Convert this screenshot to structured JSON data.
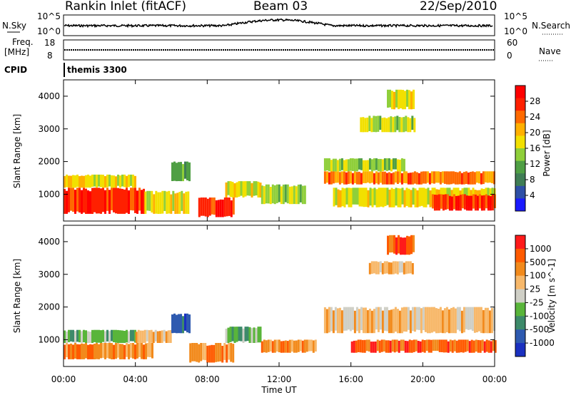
{
  "header": {
    "station": "Rankin Inlet (fitACF)",
    "beam": "Beam 03",
    "date": "22/Sep/2010"
  },
  "top_panels": {
    "nsky_label": "N.Sky",
    "nsearch_label": "N.Search",
    "nsky_ticks": [
      "10^5",
      "10^0"
    ],
    "nsearch_ticks": [
      "10^5",
      "10^0"
    ],
    "freq_label": "Freq.",
    "freq_unit": "[MHz]",
    "freq_ticks": [
      "18",
      "8"
    ],
    "nave_label": "Nave",
    "nave_ticks": [
      "60",
      "0"
    ],
    "cpid_label": "CPID",
    "cpid_value": "themis 3300"
  },
  "colors": {
    "power_scale": [
      "#1a1aff",
      "#2e4fa6",
      "#3f7d55",
      "#4f9f44",
      "#8fcf3a",
      "#f2e000",
      "#ffb000",
      "#ff6a00",
      "#ff2000",
      "#ff0000"
    ],
    "velocity_scale": [
      "#1a30c0",
      "#2e5ab0",
      "#3d8a6a",
      "#59b53a",
      "#cfcfc6",
      "#f7b86a",
      "#f28a1c",
      "#ff5a00",
      "#ff1a1a"
    ]
  },
  "chart_data": [
    {
      "type": "heatmap",
      "name": "power",
      "xlabel": "Time UT",
      "ylabel": "Slant Range [km]",
      "xlim": [
        "00:00",
        "24:00"
      ],
      "ylim": [
        180,
        4500
      ],
      "x_ticks": [
        "00:00",
        "04:00",
        "08:00",
        "12:00",
        "16:00",
        "20:00",
        "00:00"
      ],
      "y_ticks": [
        "1000",
        "2000",
        "3000",
        "4000"
      ],
      "colorbar": {
        "label": "Power [dB]",
        "ticks": [
          "28",
          "24",
          "20",
          "16",
          "12",
          "8",
          "4"
        ],
        "range": [
          0,
          30
        ]
      },
      "regions": [
        {
          "t0": 0.0,
          "t1": 4.5,
          "r0": 400,
          "r1": 1200,
          "level": 27
        },
        {
          "t0": 0.0,
          "t1": 4.0,
          "r0": 1200,
          "r1": 1600,
          "level": 17
        },
        {
          "t0": 4.5,
          "t1": 7.0,
          "r0": 400,
          "r1": 1100,
          "level": 18
        },
        {
          "t0": 6.0,
          "t1": 7.0,
          "r0": 1400,
          "r1": 2000,
          "level": 10
        },
        {
          "t0": 7.5,
          "t1": 9.5,
          "r0": 300,
          "r1": 900,
          "level": 26
        },
        {
          "t0": 9.0,
          "t1": 11.0,
          "r0": 900,
          "r1": 1400,
          "level": 18
        },
        {
          "t0": 11.0,
          "t1": 13.5,
          "r0": 700,
          "r1": 1300,
          "level": 12
        },
        {
          "t0": 14.5,
          "t1": 24.0,
          "r0": 1300,
          "r1": 1700,
          "level": 22
        },
        {
          "t0": 14.5,
          "t1": 19.0,
          "r0": 1700,
          "r1": 2100,
          "level": 12
        },
        {
          "t0": 15.0,
          "t1": 24.0,
          "r0": 600,
          "r1": 1200,
          "level": 18
        },
        {
          "t0": 20.5,
          "t1": 24.0,
          "r0": 500,
          "r1": 1000,
          "level": 26
        },
        {
          "t0": 16.5,
          "t1": 19.5,
          "r0": 2900,
          "r1": 3400,
          "level": 12
        },
        {
          "t0": 18.0,
          "t1": 19.5,
          "r0": 3600,
          "r1": 4200,
          "level": 16
        }
      ]
    },
    {
      "type": "heatmap",
      "name": "velocity",
      "xlabel": "Time UT",
      "ylabel": "Slant Range [km]",
      "xlim": [
        "00:00",
        "24:00"
      ],
      "ylim": [
        180,
        4500
      ],
      "x_ticks": [
        "00:00",
        "04:00",
        "08:00",
        "12:00",
        "16:00",
        "20:00",
        "00:00"
      ],
      "y_ticks": [
        "1000",
        "2000",
        "3000",
        "4000"
      ],
      "colorbar": {
        "label": "Velocity [m s^-1]",
        "ticks": [
          "1000",
          "500",
          "100",
          "25",
          "-25",
          "-100",
          "-500",
          "-1000"
        ]
      },
      "regions": [
        {
          "t0": 0.0,
          "t1": 4.0,
          "r0": 900,
          "r1": 1300,
          "level": 3
        },
        {
          "t0": 0.0,
          "t1": 5.0,
          "r0": 400,
          "r1": 900,
          "level": 6
        },
        {
          "t0": 4.0,
          "t1": 6.0,
          "r0": 900,
          "r1": 1300,
          "level": 5
        },
        {
          "t0": 6.0,
          "t1": 7.0,
          "r0": 1200,
          "r1": 1800,
          "level": 1
        },
        {
          "t0": 7.0,
          "t1": 9.5,
          "r0": 300,
          "r1": 900,
          "level": 6
        },
        {
          "t0": 9.0,
          "t1": 11.0,
          "r0": 900,
          "r1": 1400,
          "level": 3
        },
        {
          "t0": 11.0,
          "t1": 14.0,
          "r0": 600,
          "r1": 1000,
          "level": 6
        },
        {
          "t0": 14.5,
          "t1": 24.0,
          "r0": 1200,
          "r1": 2000,
          "level": 5
        },
        {
          "t0": 16.0,
          "t1": 24.0,
          "r0": 600,
          "r1": 1000,
          "level": 7
        },
        {
          "t0": 17.0,
          "t1": 19.5,
          "r0": 3000,
          "r1": 3400,
          "level": 5
        },
        {
          "t0": 18.0,
          "t1": 19.5,
          "r0": 3600,
          "r1": 4200,
          "level": 7
        }
      ]
    }
  ]
}
